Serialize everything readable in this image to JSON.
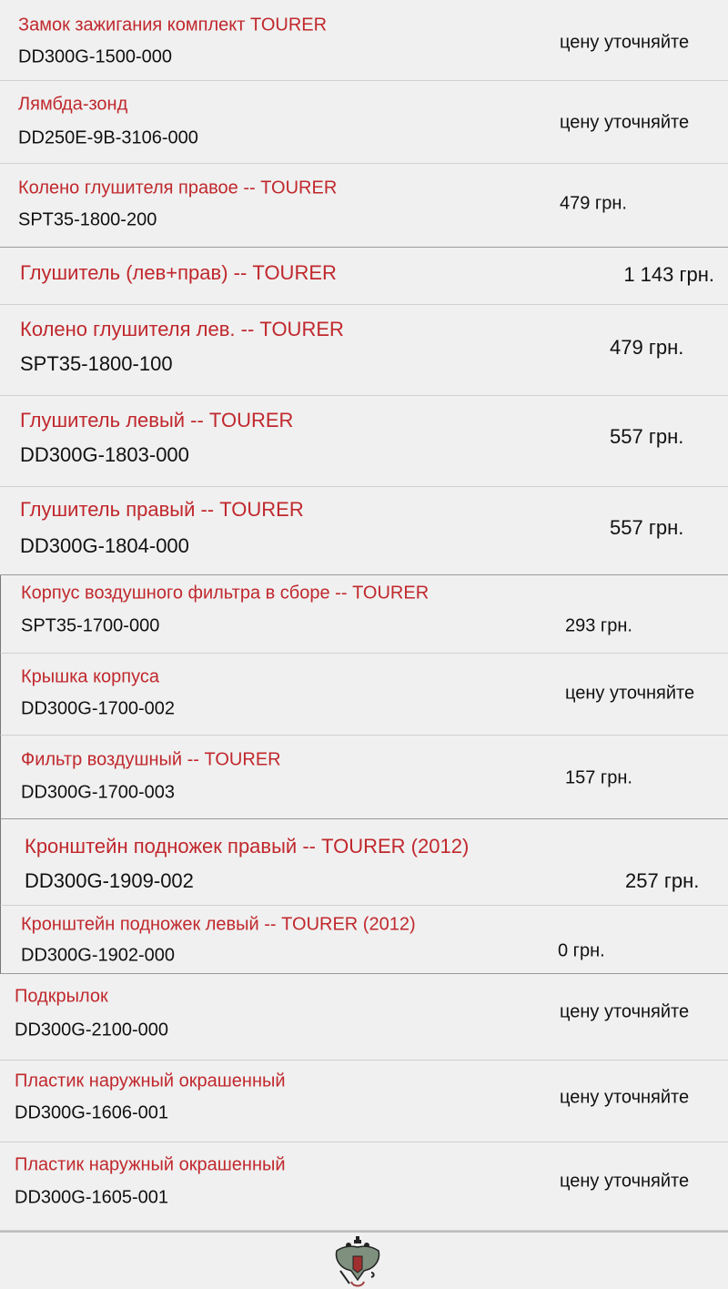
{
  "items": [
    {
      "name": "Замок зажигания комплект TOURER",
      "code": "DD300G-1500-000",
      "price": "цену уточняйте"
    },
    {
      "name": "Лямбда-зонд",
      "code": "DD250E-9B-3106-000",
      "price": "цену уточняйте"
    },
    {
      "name": "Колено глушителя правое -- TOURER",
      "code": "SPT35-1800-200",
      "price": "479 грн."
    },
    {
      "name": "Глушитель (лев+прав) -- TOURER",
      "code": "",
      "price": "1 143 грн."
    },
    {
      "name": "Колено глушителя лев. -- TOURER",
      "code": "SPT35-1800-100",
      "price": "479 грн."
    },
    {
      "name": "Глушитель левый -- TOURER",
      "code": "DD300G-1803-000",
      "price": "557 грн."
    },
    {
      "name": "Глушитель правый -- TOURER",
      "code": "DD300G-1804-000",
      "price": "557 грн."
    },
    {
      "name": "Корпус воздушного фильтра в сборе -- TOURER",
      "code": "SPT35-1700-000",
      "price": "293 грн."
    },
    {
      "name": "Крышка корпуса",
      "code": "DD300G-1700-002",
      "price": "цену уточняйте"
    },
    {
      "name": "Фильтр воздушный -- TOURER",
      "code": "DD300G-1700-003",
      "price": "157 грн."
    },
    {
      "name": "Кронштейн подножек правый -- TOURER (2012)",
      "code": "DD300G-1909-002",
      "price": "257 грн."
    },
    {
      "name": "Кронштейн подножек левый -- TOURER (2012)",
      "code": "DD300G-1902-000",
      "price": "0 грн."
    },
    {
      "name": "Подкрылок",
      "code": "DD300G-2100-000",
      "price": "цену уточняйте"
    },
    {
      "name": "Пластик наружный окрашенный",
      "code": "DD300G-1606-001",
      "price": "цену уточняйте"
    },
    {
      "name": "Пластик наружный окрашенный",
      "code": "DD300G-1605-001",
      "price": "цену уточняйте"
    }
  ],
  "colors": {
    "name": "#c0282d",
    "text": "#111111",
    "background": "#f0f0f0"
  },
  "footer": {
    "icon": "double-headed-eagle-emblem"
  }
}
